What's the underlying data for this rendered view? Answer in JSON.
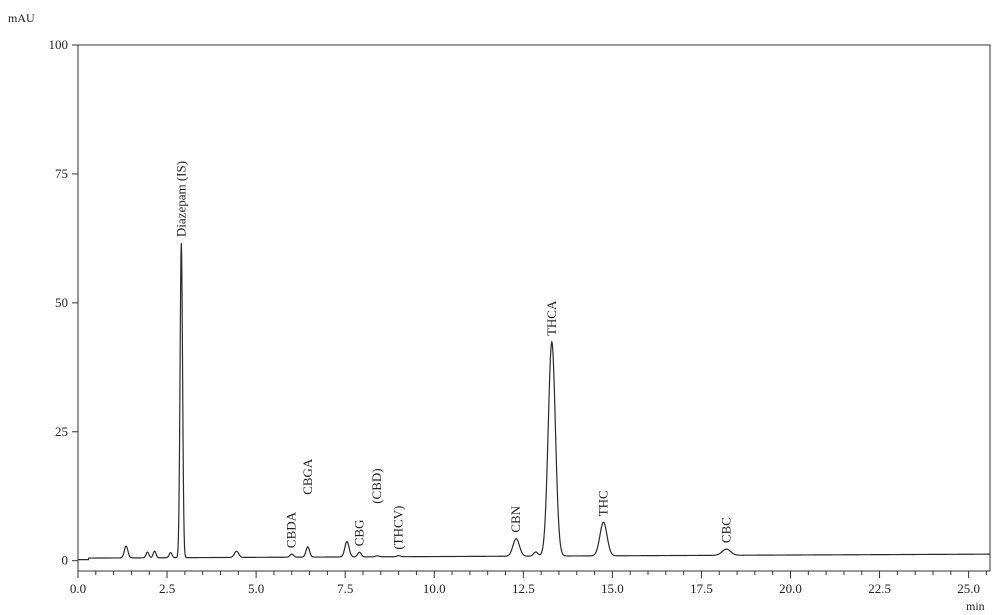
{
  "chart_data": {
    "type": "line",
    "ylabel": "mAU",
    "xlabel": "min",
    "xlim": [
      0,
      25.6
    ],
    "ylim": [
      -2,
      100
    ],
    "xticks": [
      0.0,
      2.5,
      5.0,
      7.5,
      10.0,
      12.5,
      15.0,
      17.5,
      20.0,
      22.5,
      25.0
    ],
    "xtick_labels": [
      "0.0",
      "2.5",
      "5.0",
      "7.5",
      "10.0",
      "12.5",
      "15.0",
      "17.5",
      "20.0",
      "22.5",
      "25.0"
    ],
    "yticks": [
      0,
      25,
      50,
      75,
      100
    ],
    "ytick_labels": [
      "0",
      "25",
      "50",
      "75",
      "100"
    ],
    "grid": false,
    "baseline": 0.5,
    "line_color": "#2a2a2a",
    "peaks": [
      {
        "label": "",
        "x": 1.35,
        "height": 2.3,
        "width": 0.05
      },
      {
        "label": "",
        "x": 1.95,
        "height": 1.1,
        "width": 0.04
      },
      {
        "label": "",
        "x": 2.15,
        "height": 1.3,
        "width": 0.04
      },
      {
        "label": "",
        "x": 2.6,
        "height": 1.0,
        "width": 0.04
      },
      {
        "label": "Diazepam (IS)",
        "x": 2.9,
        "height": 61.0,
        "width": 0.035
      },
      {
        "label": "",
        "x": 4.45,
        "height": 1.2,
        "width": 0.06
      },
      {
        "label": "CBDA",
        "x": 6.0,
        "height": 0.6,
        "width": 0.05
      },
      {
        "label": "CBGA",
        "x": 6.45,
        "height": 2.0,
        "width": 0.05
      },
      {
        "label": "",
        "x": 7.55,
        "height": 3.0,
        "width": 0.06
      },
      {
        "label": "CBG",
        "x": 7.9,
        "height": 0.9,
        "width": 0.05
      },
      {
        "label": "(CBD)",
        "x": 8.4,
        "height": 0.2,
        "width": 0.05
      },
      {
        "label": "(THCV)",
        "x": 9.0,
        "height": 0.2,
        "width": 0.05
      },
      {
        "label": "CBN",
        "x": 12.3,
        "height": 3.4,
        "width": 0.09
      },
      {
        "label": "",
        "x": 12.85,
        "height": 0.8,
        "width": 0.06
      },
      {
        "label": "THCA",
        "x": 13.3,
        "height": 41.5,
        "width": 0.1
      },
      {
        "label": "THC",
        "x": 14.75,
        "height": 6.5,
        "width": 0.1
      },
      {
        "label": "CBC",
        "x": 18.2,
        "height": 1.2,
        "width": 0.12
      }
    ]
  }
}
